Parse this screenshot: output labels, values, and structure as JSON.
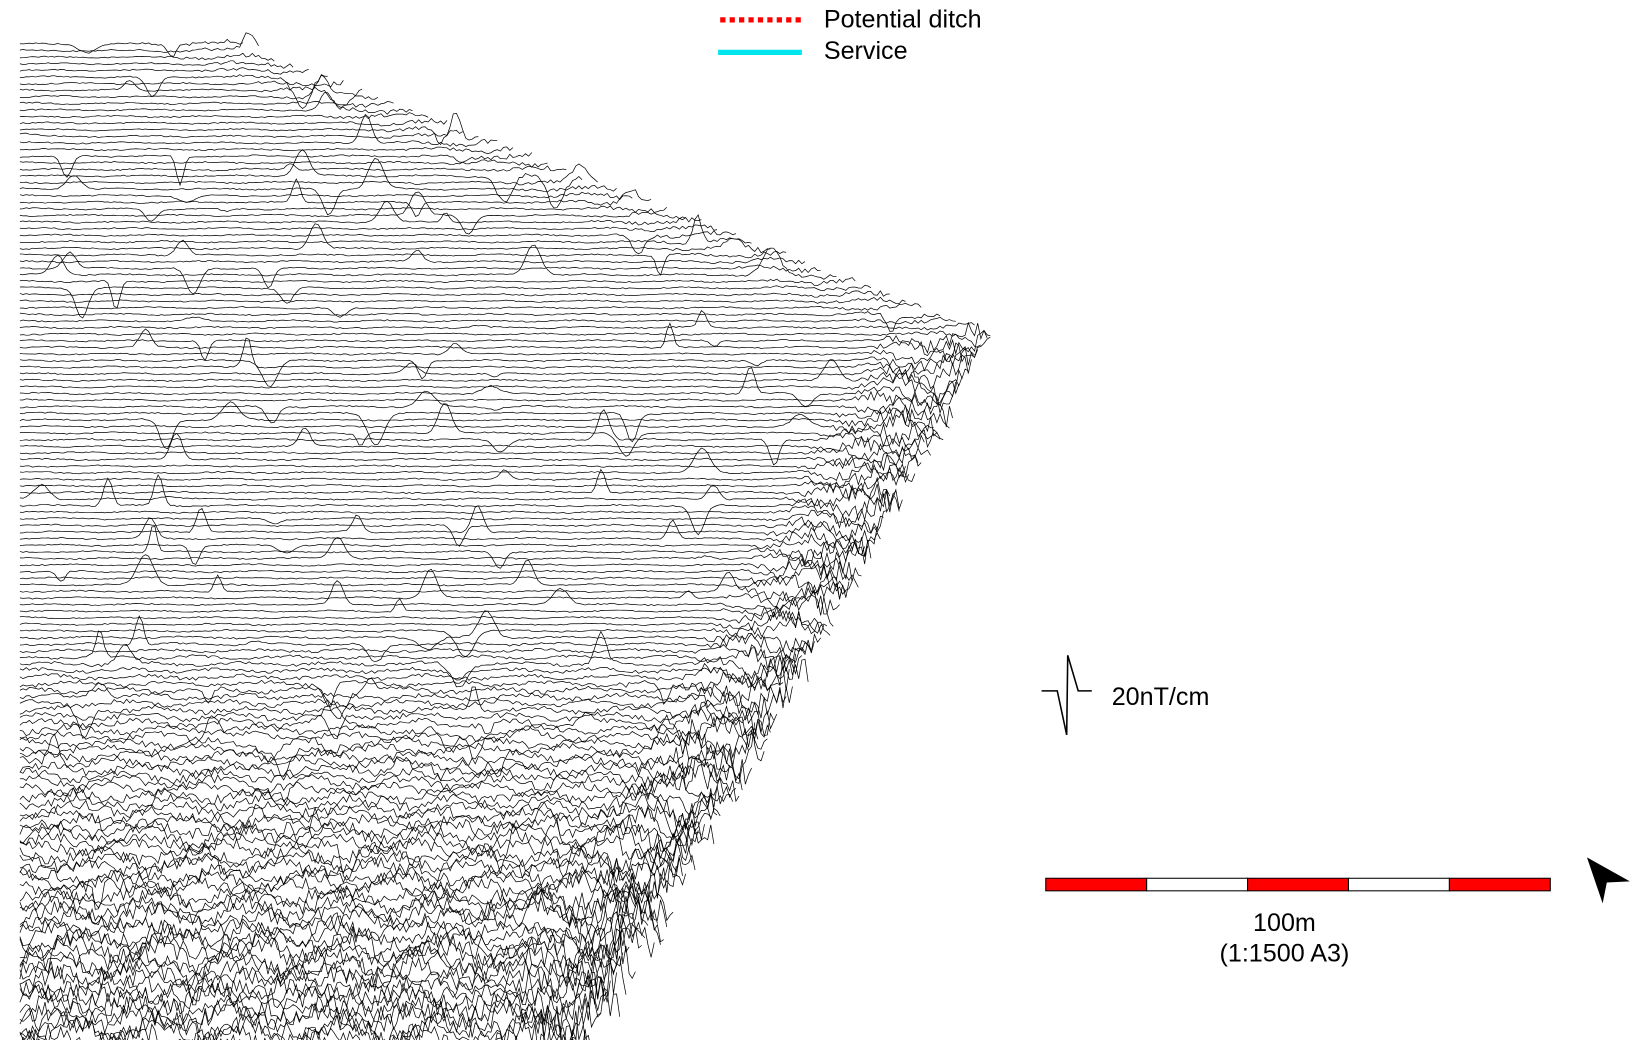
{
  "legend": {
    "items": [
      {
        "label": "Potential ditch",
        "color": "#ff0000",
        "style": "dotted"
      },
      {
        "label": "Service",
        "color": "#00e5ee",
        "style": "solid"
      }
    ]
  },
  "trace_scale": {
    "label": "20nT/cm"
  },
  "scale_bar": {
    "label": "100m",
    "subtitle": "(1:1500 A3)"
  }
}
